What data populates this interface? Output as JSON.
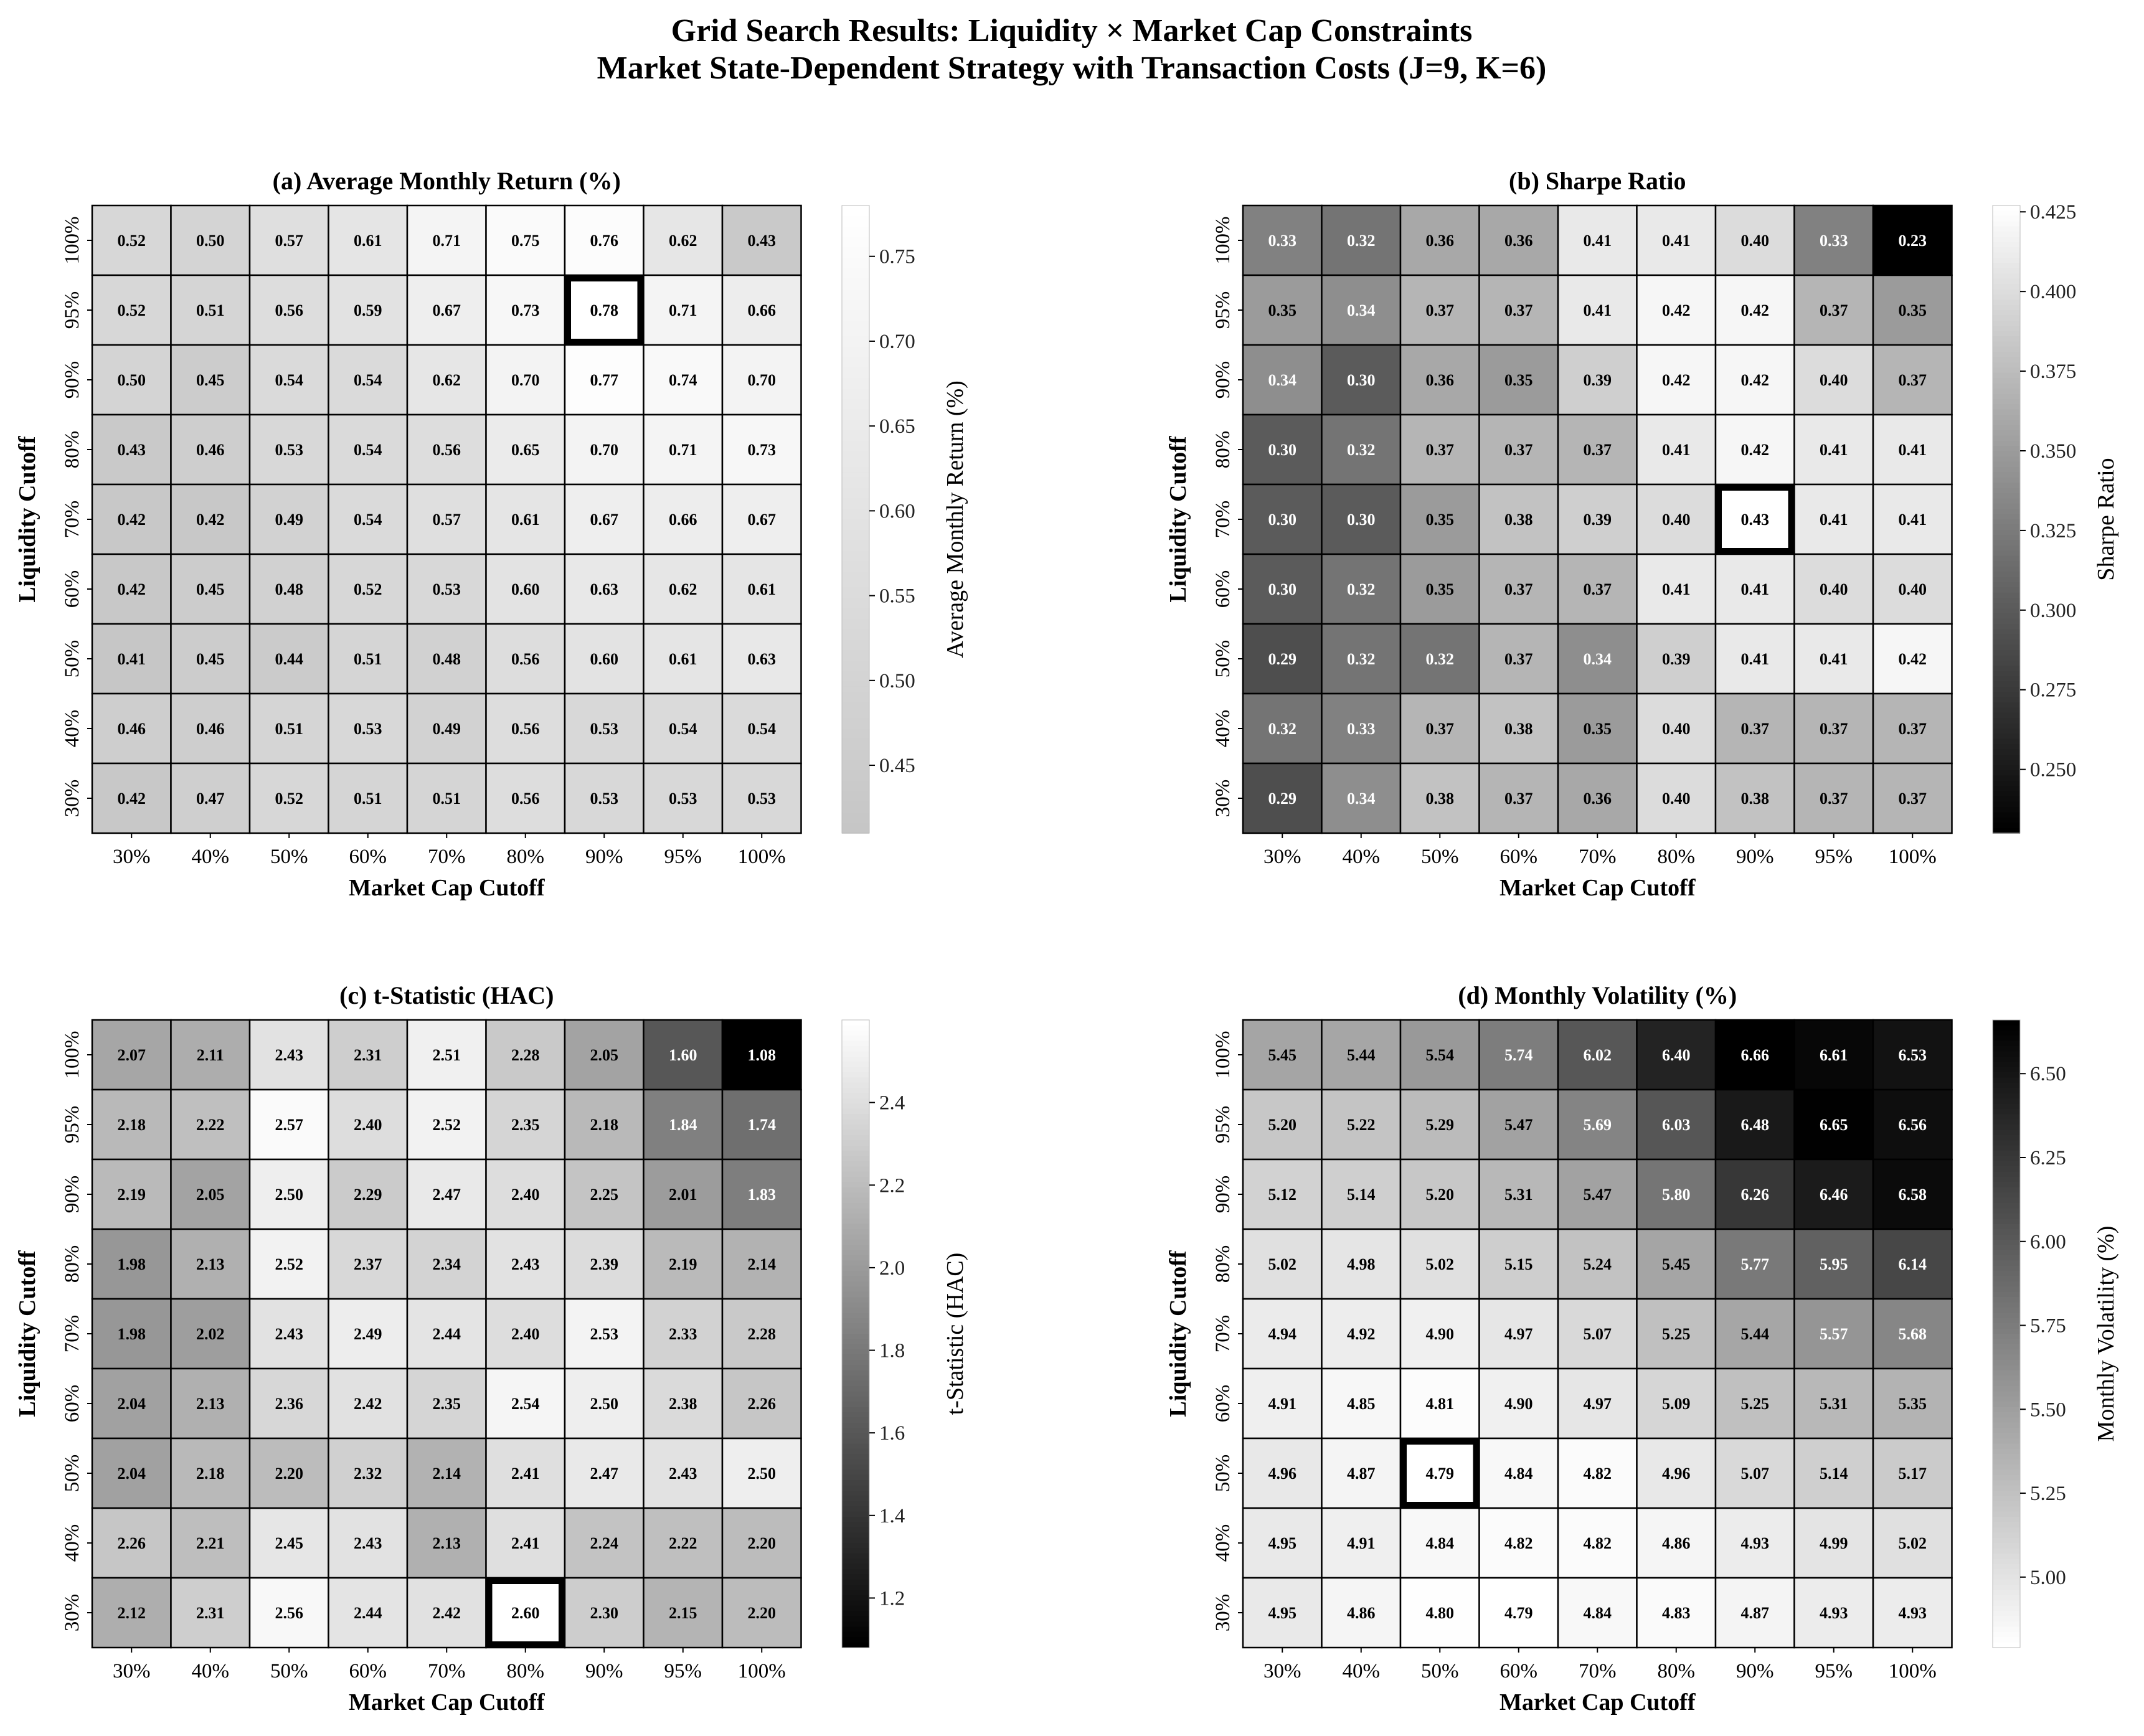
{
  "figure": {
    "title_line1": "Grid Search Results: Liquidity × Market Cap Constraints",
    "title_line2": "Market State-Dependent Strategy with Transaction Costs (J=9, K=6)"
  },
  "chart_data": [
    {
      "type": "heatmap",
      "title": "(a) Average Monthly Return (%)",
      "xlabel": "Market Cap Cutoff",
      "ylabel": "Liquidity Cutoff",
      "x_categories": [
        "30%",
        "40%",
        "50%",
        "60%",
        "70%",
        "80%",
        "90%",
        "95%",
        "100%"
      ],
      "y_categories": [
        "100%",
        "95%",
        "90%",
        "80%",
        "70%",
        "60%",
        "50%",
        "40%",
        "30%"
      ],
      "values": [
        [
          0.52,
          0.5,
          0.57,
          0.61,
          0.71,
          0.75,
          0.76,
          0.62,
          0.43
        ],
        [
          0.52,
          0.51,
          0.56,
          0.59,
          0.67,
          0.73,
          0.78,
          0.71,
          0.66
        ],
        [
          0.5,
          0.45,
          0.54,
          0.54,
          0.62,
          0.7,
          0.77,
          0.74,
          0.7
        ],
        [
          0.43,
          0.46,
          0.53,
          0.54,
          0.56,
          0.65,
          0.7,
          0.71,
          0.73
        ],
        [
          0.42,
          0.42,
          0.49,
          0.54,
          0.57,
          0.61,
          0.67,
          0.66,
          0.67
        ],
        [
          0.42,
          0.45,
          0.48,
          0.52,
          0.53,
          0.6,
          0.63,
          0.62,
          0.61
        ],
        [
          0.41,
          0.45,
          0.44,
          0.51,
          0.48,
          0.56,
          0.6,
          0.61,
          0.63
        ],
        [
          0.46,
          0.46,
          0.51,
          0.53,
          0.49,
          0.56,
          0.53,
          0.54,
          0.54
        ],
        [
          0.42,
          0.47,
          0.52,
          0.51,
          0.51,
          0.56,
          0.53,
          0.53,
          0.53
        ]
      ],
      "color_range": [
        0.41,
        0.78
      ],
      "colormap": "light-gray-to-white",
      "colorbar_label": "Average Monthly Return (%)",
      "colorbar_ticks": [
        "0.45",
        "0.50",
        "0.55",
        "0.60",
        "0.65",
        "0.70",
        "0.75"
      ],
      "highlight": {
        "row": 1,
        "col": 6
      }
    },
    {
      "type": "heatmap",
      "title": "(b) Sharpe Ratio",
      "xlabel": "Market Cap Cutoff",
      "ylabel": "Liquidity Cutoff",
      "x_categories": [
        "30%",
        "40%",
        "50%",
        "60%",
        "70%",
        "80%",
        "90%",
        "95%",
        "100%"
      ],
      "y_categories": [
        "100%",
        "95%",
        "90%",
        "80%",
        "70%",
        "60%",
        "50%",
        "40%",
        "30%"
      ],
      "values": [
        [
          0.33,
          0.32,
          0.36,
          0.36,
          0.41,
          0.41,
          0.4,
          0.33,
          0.23
        ],
        [
          0.35,
          0.34,
          0.37,
          0.37,
          0.41,
          0.42,
          0.42,
          0.37,
          0.35
        ],
        [
          0.34,
          0.3,
          0.36,
          0.35,
          0.39,
          0.42,
          0.42,
          0.4,
          0.37
        ],
        [
          0.3,
          0.32,
          0.37,
          0.37,
          0.37,
          0.41,
          0.42,
          0.41,
          0.41
        ],
        [
          0.3,
          0.3,
          0.35,
          0.38,
          0.39,
          0.4,
          0.43,
          0.41,
          0.41
        ],
        [
          0.3,
          0.32,
          0.35,
          0.37,
          0.37,
          0.41,
          0.41,
          0.4,
          0.4
        ],
        [
          0.29,
          0.32,
          0.32,
          0.37,
          0.34,
          0.39,
          0.41,
          0.41,
          0.42
        ],
        [
          0.32,
          0.33,
          0.37,
          0.38,
          0.35,
          0.4,
          0.37,
          0.37,
          0.37
        ],
        [
          0.29,
          0.34,
          0.38,
          0.37,
          0.36,
          0.4,
          0.38,
          0.37,
          0.37
        ]
      ],
      "color_range": [
        0.23,
        0.427
      ],
      "colormap": "black-to-white",
      "colorbar_label": "Sharpe Ratio",
      "colorbar_ticks": [
        "0.250",
        "0.275",
        "0.300",
        "0.325",
        "0.350",
        "0.375",
        "0.400",
        "0.425"
      ],
      "highlight": {
        "row": 4,
        "col": 6
      }
    },
    {
      "type": "heatmap",
      "title": "(c) t-Statistic (HAC)",
      "xlabel": "Market Cap Cutoff",
      "ylabel": "Liquidity Cutoff",
      "x_categories": [
        "30%",
        "40%",
        "50%",
        "60%",
        "70%",
        "80%",
        "90%",
        "95%",
        "100%"
      ],
      "y_categories": [
        "100%",
        "95%",
        "90%",
        "80%",
        "70%",
        "60%",
        "50%",
        "40%",
        "30%"
      ],
      "values": [
        [
          2.07,
          2.11,
          2.43,
          2.31,
          2.51,
          2.28,
          2.05,
          1.6,
          1.08
        ],
        [
          2.18,
          2.22,
          2.57,
          2.4,
          2.52,
          2.35,
          2.18,
          1.84,
          1.74
        ],
        [
          2.19,
          2.05,
          2.5,
          2.29,
          2.47,
          2.4,
          2.25,
          2.01,
          1.83
        ],
        [
          1.98,
          2.13,
          2.52,
          2.37,
          2.34,
          2.43,
          2.39,
          2.19,
          2.14
        ],
        [
          1.98,
          2.02,
          2.43,
          2.49,
          2.44,
          2.4,
          2.53,
          2.33,
          2.28
        ],
        [
          2.04,
          2.13,
          2.36,
          2.42,
          2.35,
          2.54,
          2.5,
          2.38,
          2.26
        ],
        [
          2.04,
          2.18,
          2.2,
          2.32,
          2.14,
          2.41,
          2.47,
          2.43,
          2.5
        ],
        [
          2.26,
          2.21,
          2.45,
          2.43,
          2.13,
          2.41,
          2.24,
          2.22,
          2.2
        ],
        [
          2.12,
          2.31,
          2.56,
          2.44,
          2.42,
          2.6,
          2.3,
          2.15,
          2.2
        ]
      ],
      "color_range": [
        1.08,
        2.6
      ],
      "colormap": "black-to-white",
      "colorbar_label": "t-Statistic (HAC)",
      "colorbar_ticks": [
        "1.2",
        "1.4",
        "1.6",
        "1.8",
        "2.0",
        "2.2",
        "2.4"
      ],
      "highlight": {
        "row": 8,
        "col": 5
      }
    },
    {
      "type": "heatmap",
      "title": "(d) Monthly Volatility (%)",
      "xlabel": "Market Cap Cutoff",
      "ylabel": "Liquidity Cutoff",
      "x_categories": [
        "30%",
        "40%",
        "50%",
        "60%",
        "70%",
        "80%",
        "90%",
        "95%",
        "100%"
      ],
      "y_categories": [
        "100%",
        "95%",
        "90%",
        "80%",
        "70%",
        "60%",
        "50%",
        "40%",
        "30%"
      ],
      "values": [
        [
          5.45,
          5.44,
          5.54,
          5.74,
          6.02,
          6.4,
          6.66,
          6.61,
          6.53
        ],
        [
          5.2,
          5.22,
          5.29,
          5.47,
          5.69,
          6.03,
          6.48,
          6.65,
          6.56
        ],
        [
          5.12,
          5.14,
          5.2,
          5.31,
          5.47,
          5.8,
          6.26,
          6.46,
          6.58
        ],
        [
          5.02,
          4.98,
          5.02,
          5.15,
          5.24,
          5.45,
          5.77,
          5.95,
          6.14
        ],
        [
          4.94,
          4.92,
          4.9,
          4.97,
          5.07,
          5.25,
          5.44,
          5.57,
          5.68
        ],
        [
          4.91,
          4.85,
          4.81,
          4.9,
          4.97,
          5.09,
          5.25,
          5.31,
          5.35
        ],
        [
          4.96,
          4.87,
          4.79,
          4.84,
          4.82,
          4.96,
          5.07,
          5.14,
          5.17
        ],
        [
          4.95,
          4.91,
          4.84,
          4.82,
          4.82,
          4.86,
          4.93,
          4.99,
          5.02
        ],
        [
          4.95,
          4.86,
          4.8,
          4.79,
          4.84,
          4.83,
          4.87,
          4.93,
          4.93
        ]
      ],
      "color_range": [
        4.79,
        6.66
      ],
      "colormap": "white-to-black",
      "colorbar_label": "Monthly Volatility (%)",
      "colorbar_ticks": [
        "5.00",
        "5.25",
        "5.50",
        "5.75",
        "6.00",
        "6.25",
        "6.50"
      ],
      "highlight": {
        "row": 6,
        "col": 2
      }
    }
  ]
}
